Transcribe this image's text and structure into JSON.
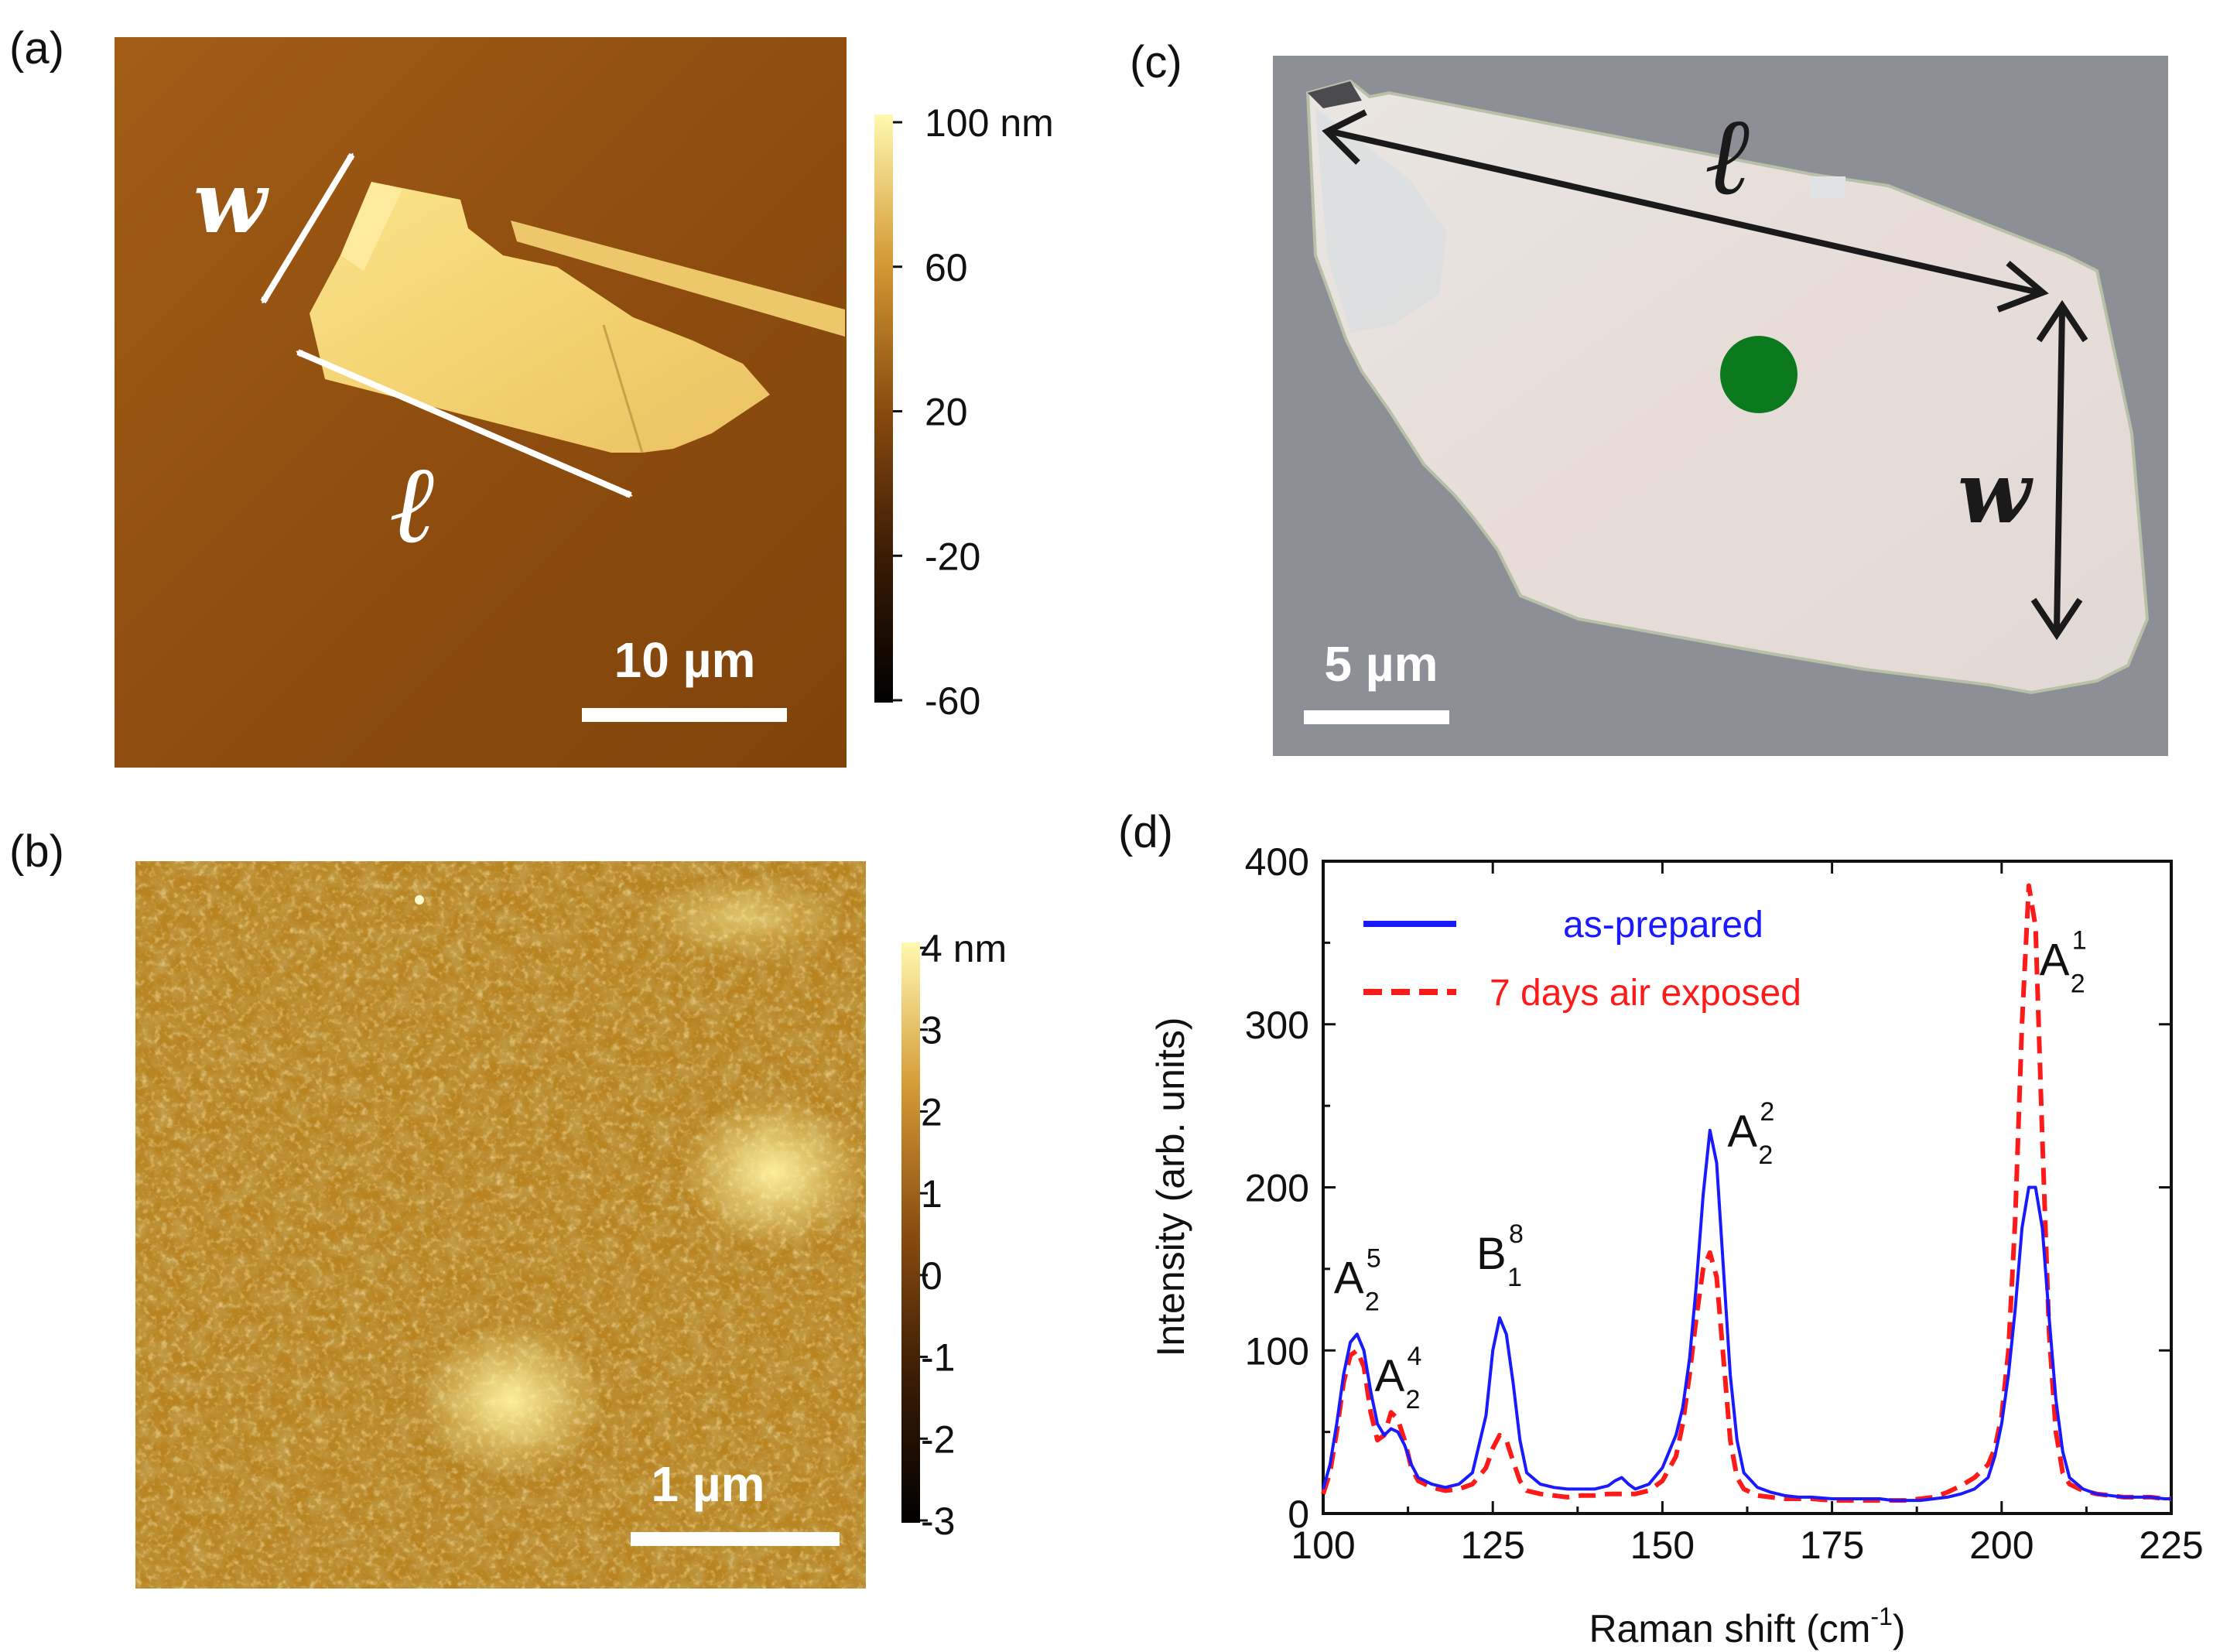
{
  "panels": {
    "a": {
      "label": "(a)",
      "colorbar_ticks": [
        "100 nm",
        "60",
        "20",
        "-20",
        "-60"
      ],
      "scale_bar": "10 µm",
      "width_symbol": "w",
      "length_symbol": "ℓ",
      "annotation_color": "#ffffff"
    },
    "b": {
      "label": "(b)",
      "colorbar_ticks": [
        "4 nm",
        "3",
        "2",
        "1",
        "0",
        "-1",
        "-2",
        "-3"
      ],
      "scale_bar": "1 µm"
    },
    "c": {
      "label": "(c)",
      "scale_bar": "5 µm",
      "width_symbol": "w",
      "length_symbol": "ℓ",
      "marker_color": "#0b7a1f"
    },
    "d": {
      "label": "(d)"
    }
  },
  "chart_data": {
    "type": "line",
    "xlabel_main": "Raman shift (cm",
    "xlabel_sup": "-1",
    "xlabel_close": ")",
    "ylabel": "Intensity (arb. units)",
    "xlim": [
      100,
      225
    ],
    "ylim": [
      0,
      400
    ],
    "xticks": [
      100,
      125,
      150,
      175,
      200,
      225
    ],
    "yticks": [
      0,
      100,
      200,
      300,
      400
    ],
    "legend": [
      {
        "name": "as-prepared",
        "color": "#1a1aff",
        "style": "solid"
      },
      {
        "name": "7 days air exposed",
        "color": "#ff1a1a",
        "style": "dashed"
      }
    ],
    "series": [
      {
        "name": "as-prepared",
        "color": "#1a1aff",
        "x": [
          100,
          101,
          102,
          103,
          104,
          105,
          106,
          107,
          108,
          109,
          110,
          111,
          112,
          113,
          114,
          116,
          118,
          120,
          122,
          124,
          125,
          126,
          127,
          128,
          129,
          130,
          132,
          134,
          136,
          138,
          140,
          142,
          143,
          144,
          145,
          146,
          148,
          150,
          152,
          153,
          154,
          155,
          156,
          157,
          158,
          159,
          160,
          161,
          162,
          164,
          166,
          168,
          170,
          172,
          175,
          178,
          180,
          182,
          184,
          186,
          188,
          190,
          192,
          194,
          196,
          198,
          199,
          200,
          201,
          202,
          203,
          204,
          205,
          206,
          207,
          208,
          209,
          210,
          212,
          214,
          216,
          218,
          220,
          222,
          224,
          225
        ],
        "y": [
          15,
          30,
          55,
          85,
          105,
          110,
          100,
          75,
          55,
          48,
          52,
          50,
          42,
          30,
          22,
          18,
          16,
          18,
          25,
          60,
          100,
          120,
          110,
          80,
          45,
          25,
          18,
          16,
          15,
          15,
          15,
          17,
          20,
          22,
          18,
          15,
          18,
          28,
          48,
          65,
          95,
          140,
          195,
          235,
          215,
          150,
          85,
          45,
          25,
          16,
          13,
          11,
          10,
          10,
          9,
          9,
          9,
          9,
          8,
          8,
          8,
          9,
          10,
          12,
          15,
          22,
          35,
          55,
          85,
          125,
          175,
          200,
          200,
          175,
          120,
          70,
          38,
          22,
          15,
          12,
          11,
          10,
          10,
          10,
          9,
          9
        ]
      },
      {
        "name": "7 days air exposed",
        "color": "#ff1a1a",
        "x": [
          100,
          101,
          102,
          103,
          104,
          105,
          106,
          107,
          108,
          109,
          110,
          111,
          112,
          113,
          114,
          116,
          118,
          120,
          122,
          124,
          125,
          126,
          127,
          128,
          129,
          130,
          132,
          134,
          136,
          138,
          140,
          142,
          144,
          146,
          148,
          150,
          152,
          153,
          154,
          155,
          156,
          157,
          158,
          159,
          160,
          161,
          162,
          164,
          166,
          168,
          170,
          172,
          175,
          178,
          180,
          182,
          184,
          186,
          188,
          190,
          192,
          194,
          196,
          198,
          199,
          200,
          201,
          202,
          203,
          204,
          205,
          206,
          207,
          208,
          209,
          210,
          212,
          214,
          216,
          218,
          220,
          222,
          224,
          225
        ],
        "y": [
          12,
          25,
          50,
          80,
          97,
          100,
          90,
          62,
          45,
          48,
          62,
          58,
          45,
          28,
          20,
          16,
          14,
          15,
          18,
          28,
          40,
          48,
          45,
          32,
          20,
          14,
          12,
          11,
          10,
          11,
          11,
          12,
          12,
          12,
          14,
          20,
          35,
          55,
          85,
          120,
          150,
          160,
          145,
          95,
          45,
          22,
          15,
          11,
          10,
          9,
          9,
          9,
          8,
          8,
          8,
          8,
          8,
          8,
          9,
          10,
          13,
          17,
          22,
          30,
          40,
          60,
          100,
          180,
          300,
          385,
          360,
          230,
          110,
          50,
          25,
          18,
          14,
          12,
          11,
          10,
          10,
          10,
          9,
          9
        ]
      }
    ],
    "peaks": [
      {
        "base": "A",
        "sub": "2",
        "sup": "5",
        "x": 105,
        "y": 135
      },
      {
        "base": "A",
        "sub": "2",
        "sup": "4",
        "x": 111,
        "y": 75
      },
      {
        "base": "B",
        "sub": "1",
        "sup": "8",
        "x": 126,
        "y": 150
      },
      {
        "base": "A",
        "sub": "2",
        "sup": "2",
        "x": 163,
        "y": 225
      },
      {
        "base": "A",
        "sub": "2",
        "sup": "1",
        "x": 209,
        "y": 330
      }
    ]
  }
}
